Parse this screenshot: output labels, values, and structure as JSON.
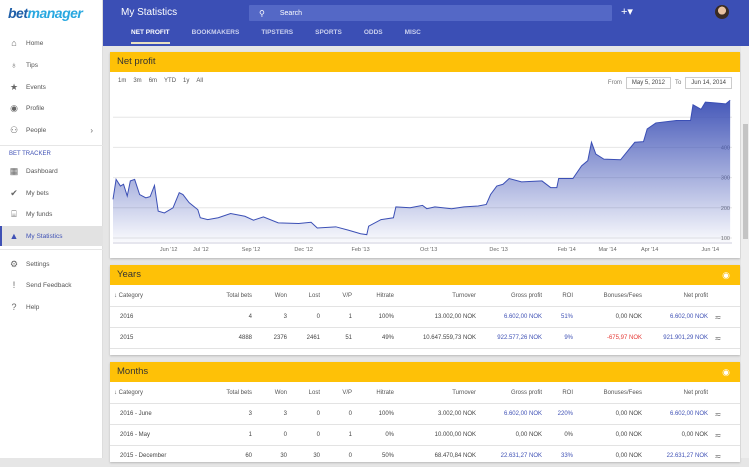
{
  "app": {
    "logo_a": "bet",
    "logo_b": "manager"
  },
  "sidebar": {
    "items": [
      {
        "label": "Home",
        "icon": "home-icon",
        "glyph": "⌂"
      },
      {
        "label": "Tips",
        "icon": "lightbulb-icon",
        "glyph": "♁"
      },
      {
        "label": "Events",
        "icon": "star-icon",
        "glyph": "★"
      },
      {
        "label": "Profile",
        "icon": "account-icon",
        "glyph": "◉"
      },
      {
        "label": "People",
        "icon": "people-icon",
        "glyph": "⚇"
      }
    ],
    "section": "BET TRACKER",
    "tracker": [
      {
        "label": "Dashboard",
        "icon": "dashboard-icon",
        "glyph": "▦"
      },
      {
        "label": "My bets",
        "icon": "check-circle-icon",
        "glyph": "✔"
      },
      {
        "label": "My funds",
        "icon": "bank-icon",
        "glyph": "⌸"
      },
      {
        "label": "My Statistics",
        "icon": "statistics-icon",
        "glyph": "▲"
      }
    ],
    "bottom": [
      {
        "label": "Settings",
        "icon": "gear-icon",
        "glyph": "⚙"
      },
      {
        "label": "Send Feedback",
        "icon": "feedback-icon",
        "glyph": "!"
      },
      {
        "label": "Help",
        "icon": "help-icon",
        "glyph": "?"
      }
    ]
  },
  "header": {
    "title": "My Statistics",
    "search_placeholder": "Search",
    "plus": "+▾",
    "tabs": [
      "NET PROFIT",
      "BOOKMAKERS",
      "TIPSTERS",
      "SPORTS",
      "ODDS",
      "MISC"
    ]
  },
  "netprofit": {
    "title": "Net profit",
    "ranges": [
      "1m",
      "3m",
      "6m",
      "YTD",
      "1y",
      "All"
    ],
    "from_label": "From",
    "from": "May 5, 2012",
    "to_label": "To",
    "to": "Jun 14, 2014"
  },
  "columns": [
    "Category",
    "Total bets",
    "Won",
    "Lost",
    "V/P",
    "Hitrate",
    "Turnover",
    "Gross profit",
    "ROI",
    "Bonuses/Fees",
    "Net profit"
  ],
  "years": {
    "title": "Years",
    "rows": [
      [
        "2016",
        "4",
        "3",
        "0",
        "1",
        "100%",
        "13.002,00 NOK",
        "6.602,00 NOK",
        "51%",
        "0,00 NOK",
        "6.602,00 NOK"
      ],
      [
        "2015",
        "4888",
        "2376",
        "2461",
        "51",
        "49%",
        "10.647.559,73 NOK",
        "922.577,26 NOK",
        "9%",
        "-675,97 NOK",
        "921.901,29 NOK"
      ]
    ]
  },
  "months": {
    "title": "Months",
    "rows": [
      [
        "2016 - June",
        "3",
        "3",
        "0",
        "0",
        "100%",
        "3.002,00 NOK",
        "6.602,00 NOK",
        "220%",
        "0,00 NOK",
        "6.602,00 NOK"
      ],
      [
        "2016 - May",
        "1",
        "0",
        "0",
        "1",
        "0%",
        "10.000,00 NOK",
        "0,00 NOK",
        "0%",
        "0,00 NOK",
        "0,00 NOK"
      ],
      [
        "2015 - December",
        "60",
        "30",
        "30",
        "0",
        "50%",
        "68.470,84 NOK",
        "22.631,27 NOK",
        "33%",
        "0,00 NOK",
        "22.631,27 NOK"
      ]
    ]
  },
  "chart_data": {
    "type": "area",
    "title": "Net profit",
    "xlabel": "",
    "ylabel": "",
    "ylim": [
      80,
      570
    ],
    "yticks": [
      100,
      200,
      300,
      400
    ],
    "xticks": [
      {
        "t": 9,
        "label": "Jun '12"
      },
      {
        "t": 14.2,
        "label": "Jul '12"
      },
      {
        "t": 22.3,
        "label": "Sep '12"
      },
      {
        "t": 30.8,
        "label": "Dec '12"
      },
      {
        "t": 40,
        "label": "Feb '13"
      },
      {
        "t": 51,
        "label": "Oct '13"
      },
      {
        "t": 62.3,
        "label": "Dec '13"
      },
      {
        "t": 73.3,
        "label": "Feb '14"
      },
      {
        "t": 79.9,
        "label": "Mar '14"
      },
      {
        "t": 86.7,
        "label": "Apr '14"
      },
      {
        "t": 96.5,
        "label": "Jun '14"
      }
    ],
    "points": [
      [
        0,
        228
      ],
      [
        0.5,
        294
      ],
      [
        1.2,
        272
      ],
      [
        1.7,
        278
      ],
      [
        2.3,
        239
      ],
      [
        2.8,
        289
      ],
      [
        3.5,
        294
      ],
      [
        4.3,
        244
      ],
      [
        5.3,
        233
      ],
      [
        6,
        237
      ],
      [
        6.7,
        274
      ],
      [
        7.3,
        189
      ],
      [
        8.3,
        183
      ],
      [
        9.7,
        200
      ],
      [
        10.7,
        250
      ],
      [
        11.3,
        244
      ],
      [
        12.3,
        217
      ],
      [
        13.7,
        194
      ],
      [
        14.1,
        167
      ],
      [
        15.3,
        161
      ],
      [
        17,
        167
      ],
      [
        19,
        181
      ],
      [
        21.3,
        172
      ],
      [
        22.7,
        159
      ],
      [
        24.3,
        170
      ],
      [
        26.7,
        150
      ],
      [
        30,
        148
      ],
      [
        32,
        152
      ],
      [
        33,
        133
      ],
      [
        36,
        137
      ],
      [
        38,
        126
      ],
      [
        40,
        114
      ],
      [
        41,
        111
      ],
      [
        41.3,
        139
      ],
      [
        43.3,
        161
      ],
      [
        45.3,
        167
      ],
      [
        45.7,
        203
      ],
      [
        48,
        200
      ],
      [
        50,
        208
      ],
      [
        50.7,
        197
      ],
      [
        52,
        203
      ],
      [
        54.7,
        197
      ],
      [
        56.7,
        203
      ],
      [
        59,
        206
      ],
      [
        60.3,
        211
      ],
      [
        61,
        244
      ],
      [
        62,
        272
      ],
      [
        63,
        278
      ],
      [
        64,
        297
      ],
      [
        66,
        286
      ],
      [
        69.3,
        289
      ],
      [
        70.7,
        267
      ],
      [
        71.7,
        267
      ],
      [
        72,
        297
      ],
      [
        74.3,
        297
      ],
      [
        75.7,
        339
      ],
      [
        76.7,
        356
      ],
      [
        77.3,
        417
      ],
      [
        78,
        378
      ],
      [
        79.3,
        361
      ],
      [
        82,
        359
      ],
      [
        83.3,
        392
      ],
      [
        84.3,
        417
      ],
      [
        85.7,
        419
      ],
      [
        86.3,
        461
      ],
      [
        87.7,
        481
      ],
      [
        91,
        489
      ],
      [
        93.3,
        489
      ],
      [
        93.7,
        541
      ],
      [
        95,
        526
      ],
      [
        95.7,
        550
      ],
      [
        97,
        548
      ],
      [
        99,
        544
      ],
      [
        99.7,
        556
      ]
    ],
    "line_color": "#3b4fb5"
  }
}
